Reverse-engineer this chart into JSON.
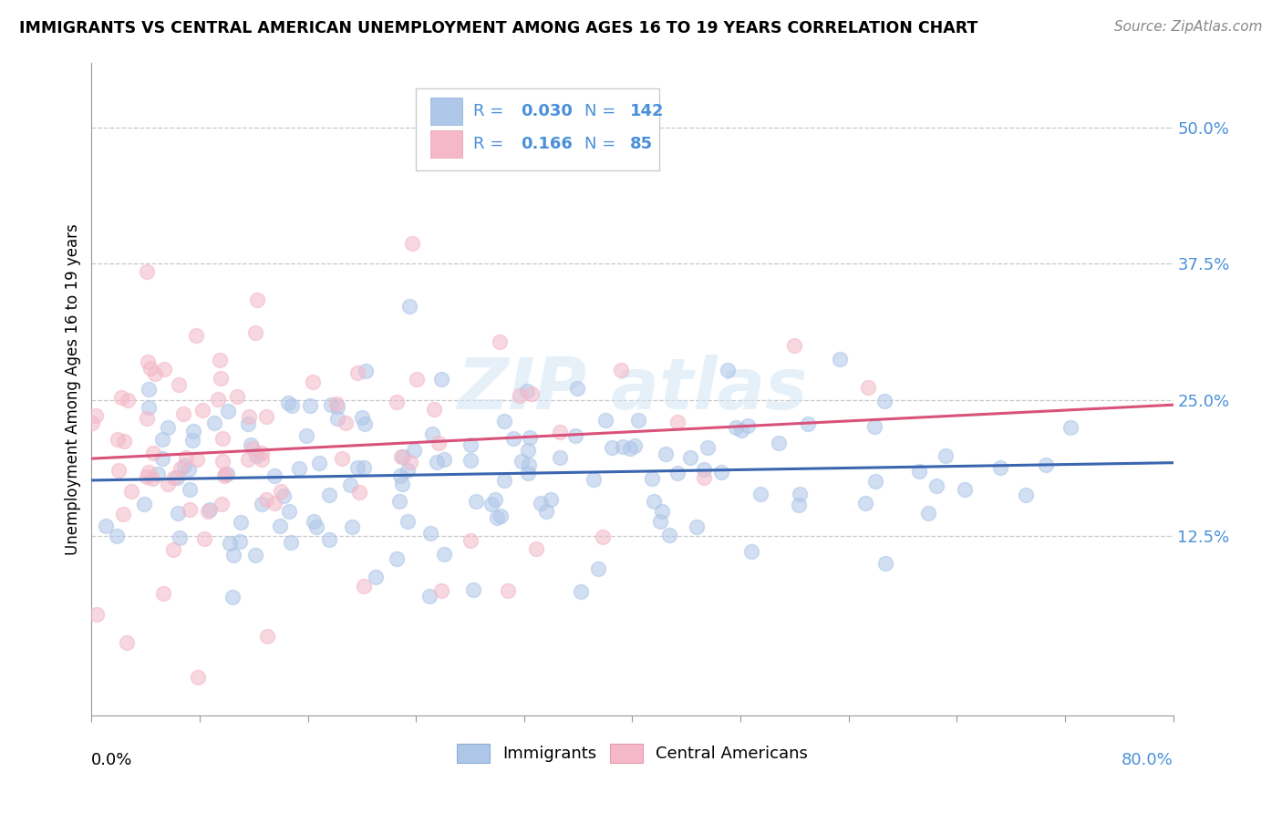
{
  "title": "IMMIGRANTS VS CENTRAL AMERICAN UNEMPLOYMENT AMONG AGES 16 TO 19 YEARS CORRELATION CHART",
  "source": "Source: ZipAtlas.com",
  "ylabel": "Unemployment Among Ages 16 to 19 years",
  "xlim": [
    0.0,
    0.8
  ],
  "ylim": [
    -0.04,
    0.56
  ],
  "xticks": [
    0.0,
    0.08,
    0.16,
    0.24,
    0.32,
    0.4,
    0.48,
    0.56,
    0.64,
    0.72,
    0.8
  ],
  "ytick_positions": [
    0.125,
    0.25,
    0.375,
    0.5
  ],
  "yticklabels": [
    "12.5%",
    "25.0%",
    "37.5%",
    "50.0%"
  ],
  "background_color": "#ffffff",
  "grid_color": "#c8c8c8",
  "immigrants_color": "#aec6e8",
  "central_americans_color": "#f4b8c8",
  "immigrants_line_color": "#3a66b0",
  "central_americans_line_color": "#d9527a",
  "blue_text_color": "#4a90d9",
  "legend_R_immigrants": "0.030",
  "legend_N_immigrants": "142",
  "legend_R_central": "0.166",
  "legend_N_central": "85"
}
